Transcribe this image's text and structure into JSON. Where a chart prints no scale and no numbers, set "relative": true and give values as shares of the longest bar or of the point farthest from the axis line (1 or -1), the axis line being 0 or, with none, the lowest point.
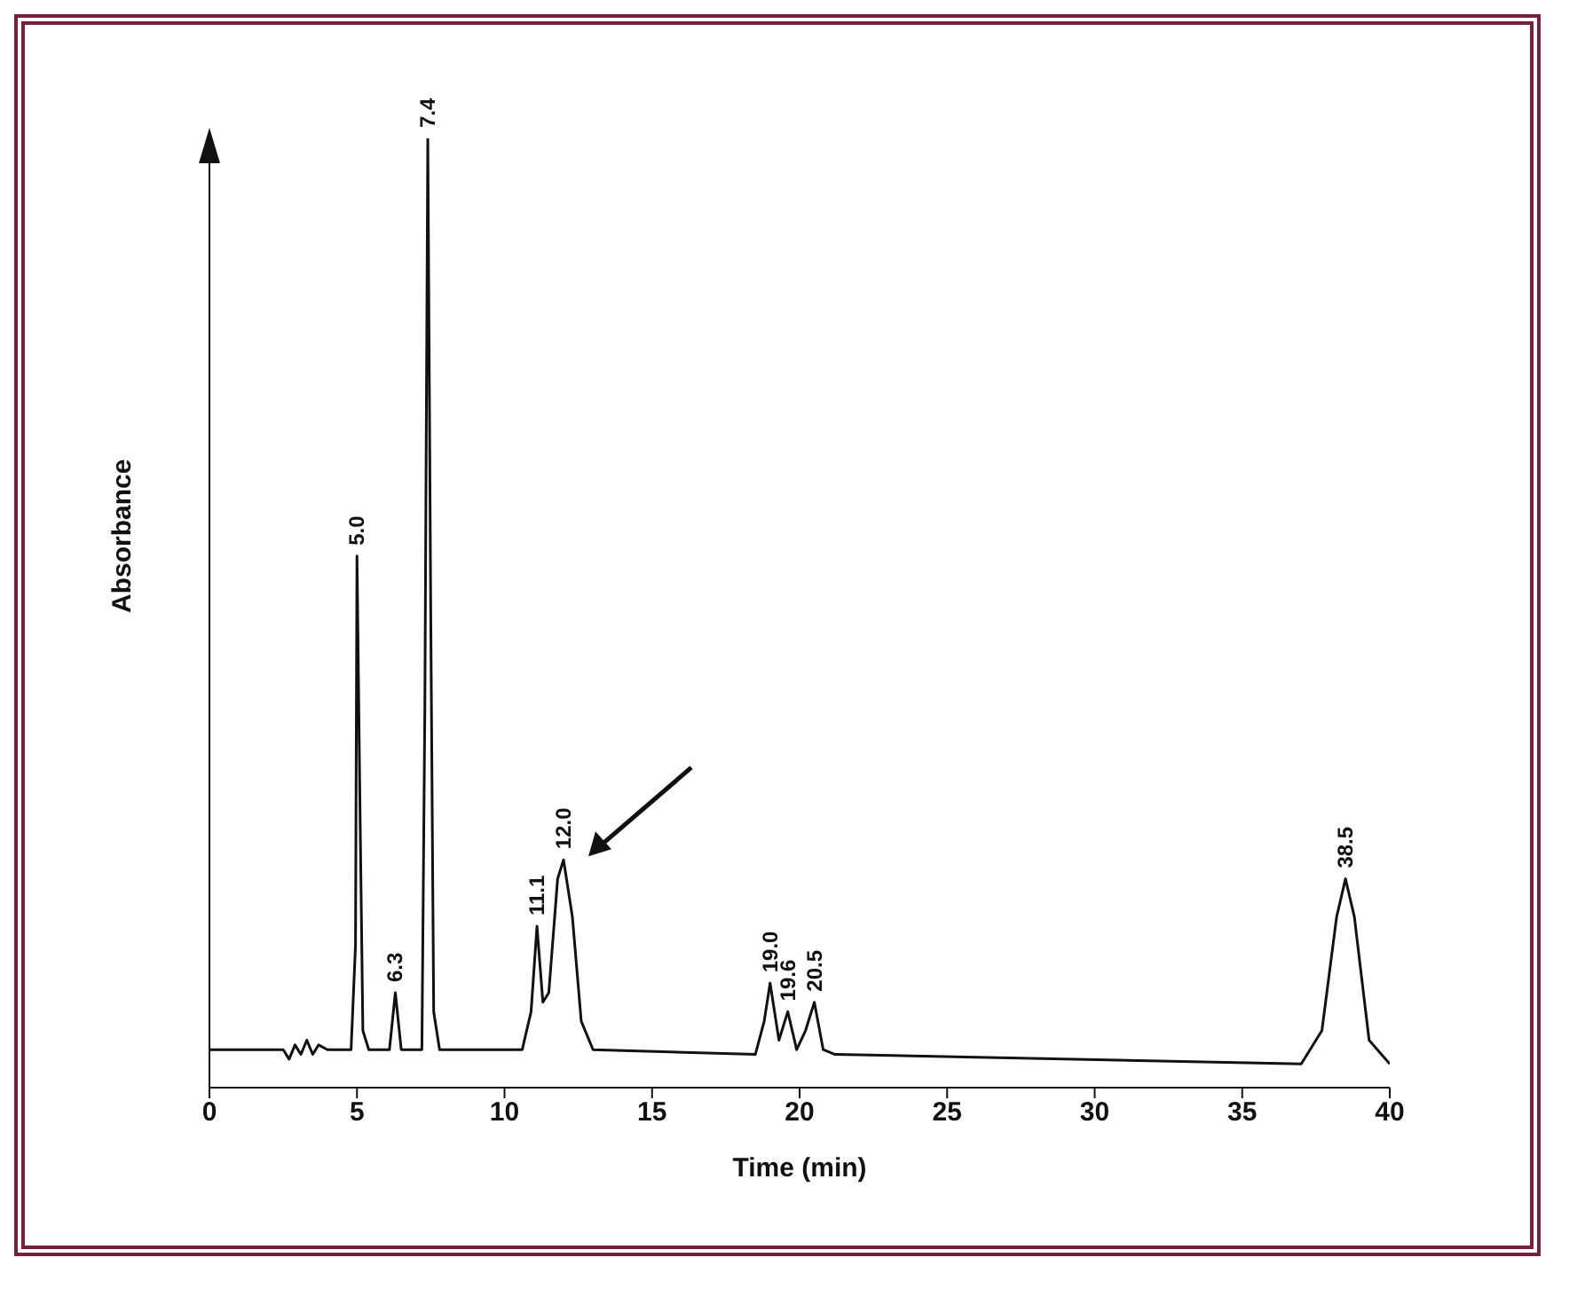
{
  "chart_data": {
    "type": "line",
    "relative": true,
    "xlabel": "Time (min)",
    "ylabel": "Absorbance",
    "xlim": [
      0,
      40
    ],
    "xticks": [
      0,
      5,
      10,
      15,
      20,
      25,
      30,
      35,
      40
    ],
    "marker": "none",
    "line_style": "solid",
    "series": [
      {
        "color": "#111111",
        "x": [
          0,
          2.5,
          2.7,
          2.9,
          3.1,
          3.3,
          3.5,
          3.7,
          4.0,
          4.8,
          4.95,
          5.0,
          5.1,
          5.2,
          5.4,
          6.1,
          6.3,
          6.5,
          7.2,
          7.3,
          7.4,
          7.5,
          7.6,
          7.8,
          10.6,
          10.9,
          11.1,
          11.3,
          11.5,
          11.8,
          12.0,
          12.3,
          12.6,
          13.0,
          18.5,
          18.8,
          19.0,
          19.3,
          19.6,
          19.9,
          20.2,
          20.5,
          20.8,
          21.2,
          37.0,
          37.7,
          38.2,
          38.5,
          38.8,
          39.3,
          40
        ],
        "values": [
          0.04,
          0.04,
          0.03,
          0.045,
          0.035,
          0.05,
          0.035,
          0.045,
          0.04,
          0.04,
          0.15,
          0.56,
          0.3,
          0.06,
          0.04,
          0.04,
          0.1,
          0.04,
          0.04,
          0.4,
          1.0,
          0.5,
          0.08,
          0.04,
          0.04,
          0.08,
          0.17,
          0.09,
          0.1,
          0.22,
          0.24,
          0.18,
          0.07,
          0.04,
          0.035,
          0.07,
          0.11,
          0.05,
          0.08,
          0.04,
          0.06,
          0.09,
          0.04,
          0.035,
          0.025,
          0.06,
          0.18,
          0.22,
          0.18,
          0.05,
          0.025
        ]
      }
    ],
    "annotations": [
      {
        "text": "5.0",
        "x": 5.0,
        "y": 0.56
      },
      {
        "text": "6.3",
        "x": 6.3,
        "y": 0.1
      },
      {
        "text": "7.4",
        "x": 7.4,
        "y": 1.0
      },
      {
        "text": "11.1",
        "x": 11.1,
        "y": 0.17
      },
      {
        "text": "12.0",
        "x": 12.0,
        "y": 0.24
      },
      {
        "text": "19.0",
        "x": 19.0,
        "y": 0.11
      },
      {
        "text": "19.6",
        "x": 19.6,
        "y": 0.08
      },
      {
        "text": "20.5",
        "x": 20.5,
        "y": 0.09
      },
      {
        "text": "38.5",
        "x": 38.5,
        "y": 0.22
      }
    ]
  }
}
